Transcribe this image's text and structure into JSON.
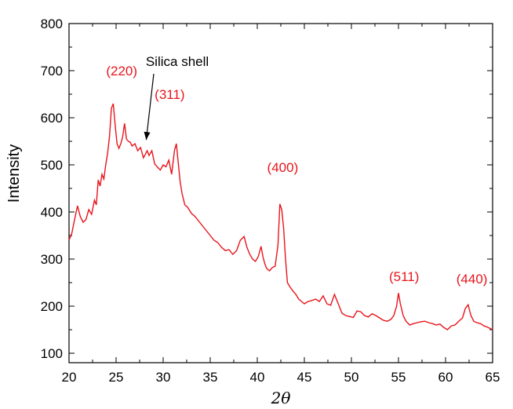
{
  "chart_data": {
    "type": "line",
    "xlabel": "2θ",
    "ylabel": "Intensity",
    "xlim": [
      20,
      65
    ],
    "ylim": [
      80,
      800
    ],
    "xticks": [
      20,
      25,
      30,
      35,
      40,
      45,
      50,
      55,
      60,
      65
    ],
    "yticks": [
      100,
      200,
      300,
      400,
      500,
      600,
      700,
      800
    ],
    "grid": false,
    "line_color": "#e8141b",
    "label_color": "#e8141b",
    "series": [
      {
        "x": [
          20.0,
          20.3,
          20.6,
          20.9,
          21.2,
          21.5,
          21.8,
          22.1,
          22.4,
          22.7,
          22.9,
          23.1,
          23.3,
          23.5,
          23.7,
          23.9,
          24.1,
          24.3,
          24.5,
          24.7,
          24.9,
          25.1,
          25.3,
          25.5,
          25.7,
          25.9,
          26.1,
          26.3,
          26.5,
          26.7,
          27.0,
          27.3,
          27.6,
          27.9,
          28.1,
          28.3,
          28.5,
          28.8,
          29.1,
          29.4,
          29.7,
          30.0,
          30.3,
          30.6,
          30.9,
          31.2,
          31.4,
          31.6,
          31.8,
          32.0,
          32.3,
          32.6,
          33.0,
          33.4,
          33.8,
          34.2,
          34.6,
          35.0,
          35.4,
          35.8,
          36.2,
          36.6,
          37.0,
          37.4,
          37.8,
          38.2,
          38.6,
          38.9,
          39.2,
          39.5,
          39.8,
          40.1,
          40.4,
          40.6,
          40.8,
          41.0,
          41.3,
          41.6,
          41.9,
          42.2,
          42.4,
          42.6,
          42.8,
          43.0,
          43.2,
          43.5,
          43.8,
          44.1,
          44.4,
          44.7,
          45.0,
          45.4,
          45.8,
          46.2,
          46.6,
          47.0,
          47.4,
          47.8,
          48.2,
          48.6,
          49.0,
          49.4,
          49.8,
          50.2,
          50.6,
          51.0,
          51.4,
          51.8,
          52.2,
          52.6,
          53.0,
          53.4,
          53.8,
          54.2,
          54.5,
          54.8,
          55.0,
          55.2,
          55.5,
          55.8,
          56.2,
          56.6,
          57.0,
          57.4,
          57.8,
          58.2,
          58.6,
          59.0,
          59.4,
          59.8,
          60.2,
          60.6,
          61.0,
          61.4,
          61.8,
          62.1,
          62.4,
          62.7,
          63.0,
          63.3,
          63.7,
          64.1,
          64.5,
          65.0
        ],
        "y": [
          340,
          355,
          385,
          413,
          390,
          378,
          384,
          405,
          395,
          425,
          415,
          468,
          455,
          480,
          470,
          500,
          525,
          560,
          620,
          630,
          585,
          545,
          535,
          545,
          560,
          588,
          555,
          550,
          548,
          540,
          545,
          530,
          537,
          515,
          522,
          530,
          520,
          530,
          502,
          495,
          489,
          500,
          496,
          510,
          480,
          530,
          545,
          505,
          465,
          440,
          415,
          410,
          397,
          390,
          380,
          370,
          360,
          350,
          340,
          335,
          325,
          318,
          320,
          310,
          318,
          340,
          348,
          325,
          310,
          300,
          295,
          305,
          327,
          305,
          290,
          280,
          275,
          282,
          285,
          330,
          417,
          405,
          365,
          300,
          250,
          240,
          232,
          225,
          215,
          210,
          205,
          210,
          212,
          215,
          210,
          222,
          205,
          202,
          225,
          205,
          185,
          180,
          178,
          176,
          190,
          188,
          180,
          177,
          184,
          180,
          175,
          170,
          168,
          172,
          180,
          200,
          228,
          205,
          180,
          168,
          160,
          163,
          165,
          167,
          168,
          165,
          163,
          160,
          162,
          155,
          150,
          158,
          160,
          168,
          175,
          195,
          203,
          180,
          168,
          165,
          163,
          158,
          155,
          150
        ]
      }
    ],
    "peak_labels": [
      {
        "text": "(220)",
        "x": 25.6,
        "y": 690
      },
      {
        "text": "(311)",
        "x": 30.7,
        "y": 640
      },
      {
        "text": "(400)",
        "x": 42.7,
        "y": 485
      },
      {
        "text": "(511)",
        "x": 55.6,
        "y": 253
      },
      {
        "text": "(440)",
        "x": 62.8,
        "y": 248
      }
    ],
    "annotation": {
      "text": "Silica shell",
      "x": 31.5,
      "y": 710,
      "arrow_to": [
        28.2,
        553
      ]
    }
  }
}
